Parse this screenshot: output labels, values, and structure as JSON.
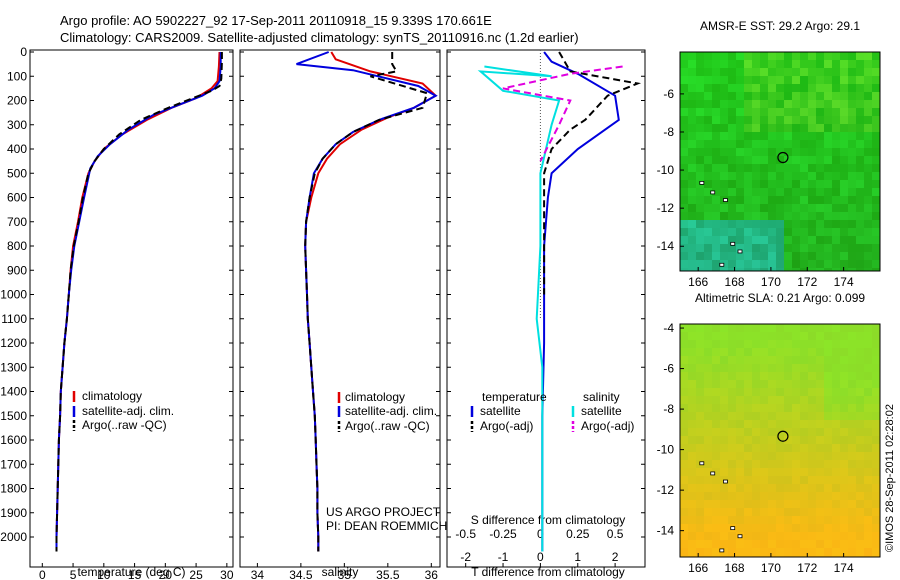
{
  "header": {
    "line1": "Argo profile: AO 5902227_92 17-Sep-2011 20110918_15 9.339S 170.661E",
    "line2": "Climatology: CARS2009. Satellite-adjusted climatology: synTS_20110916.nc (1.2d earlier)"
  },
  "credit": "©IMOS 28-Sep-2011 02:28:02",
  "project": {
    "line1": "US ARGO PROJECT",
    "line2": "PI: DEAN ROEMMICH"
  },
  "colors": {
    "climatology": "#e00000",
    "satellite": "#0000dd",
    "argo": "#000000",
    "salinity_sat": "#00e0e0",
    "salinity_argo": "#e000e0"
  },
  "chart_data": [
    {
      "id": "temperature",
      "type": "line",
      "xlabel": "temperature (deg C)",
      "ylabel": "",
      "xlim": [
        -2,
        31
      ],
      "ylim": [
        2060,
        0
      ],
      "xticks": [
        0,
        5,
        10,
        15,
        20,
        25,
        30
      ],
      "yticks": [
        0,
        100,
        200,
        300,
        400,
        500,
        600,
        700,
        800,
        900,
        1000,
        1100,
        1200,
        1300,
        1400,
        1500,
        1600,
        1700,
        1800,
        1900,
        2000
      ],
      "legend": {
        "placement": "bottom-center",
        "entries": [
          "climatology",
          "satellite-adj. clim.",
          "Argo(..raw -QC)"
        ]
      },
      "series": [
        {
          "name": "climatology",
          "color": "#e00000",
          "points": [
            [
              28.8,
              0
            ],
            [
              28.7,
              60
            ],
            [
              28.5,
              120
            ],
            [
              27.5,
              150
            ],
            [
              25,
              190
            ],
            [
              21,
              230
            ],
            [
              17,
              280
            ],
            [
              13,
              340
            ],
            [
              10,
              400
            ],
            [
              8.5,
              450
            ],
            [
              7.5,
              500
            ],
            [
              6.5,
              600
            ],
            [
              5.8,
              700
            ],
            [
              5.0,
              800
            ],
            [
              4.6,
              900
            ],
            [
              4.3,
              1000
            ],
            [
              4.0,
              1100
            ],
            [
              3.6,
              1200
            ],
            [
              3.3,
              1300
            ],
            [
              3.0,
              1400
            ],
            [
              2.9,
              1500
            ],
            [
              2.7,
              1600
            ],
            [
              2.6,
              1700
            ],
            [
              2.5,
              1800
            ],
            [
              2.4,
              1900
            ],
            [
              2.3,
              2000
            ],
            [
              2.3,
              2060
            ]
          ]
        },
        {
          "name": "satellite-adj. clim.",
          "color": "#0000dd",
          "points": [
            [
              29.0,
              0
            ],
            [
              29.0,
              60
            ],
            [
              28.8,
              120
            ],
            [
              28,
              150
            ],
            [
              26,
              180
            ],
            [
              22,
              220
            ],
            [
              18,
              260
            ],
            [
              14,
              320
            ],
            [
              11,
              380
            ],
            [
              9,
              430
            ],
            [
              7.8,
              480
            ],
            [
              6.8,
              600
            ],
            [
              6.0,
              700
            ],
            [
              5.2,
              800
            ],
            [
              4.7,
              900
            ],
            [
              4.3,
              1000
            ],
            [
              4.0,
              1100
            ],
            [
              3.6,
              1200
            ],
            [
              3.3,
              1300
            ],
            [
              3.0,
              1400
            ],
            [
              2.9,
              1500
            ],
            [
              2.7,
              1600
            ],
            [
              2.6,
              1700
            ],
            [
              2.5,
              1800
            ],
            [
              2.4,
              1900
            ],
            [
              2.3,
              2000
            ],
            [
              2.3,
              2060
            ]
          ]
        },
        {
          "name": "Argo(..raw -QC)",
          "color": "#000000",
          "dash": true,
          "points": [
            [
              29.2,
              0
            ],
            [
              29.2,
              40
            ],
            [
              29.1,
              110
            ],
            [
              28.8,
              140
            ],
            [
              27.5,
              160
            ],
            [
              24.5,
              190
            ],
            [
              20.5,
              230
            ],
            [
              16,
              280
            ],
            [
              12.5,
              340
            ],
            [
              10,
              400
            ],
            [
              8.5,
              450
            ],
            [
              7.5,
              500
            ],
            [
              6.6,
              600
            ],
            [
              5.9,
              700
            ],
            [
              5.1,
              800
            ],
            [
              4.6,
              900
            ],
            [
              4.3,
              1000
            ],
            [
              4.0,
              1100
            ],
            [
              3.6,
              1200
            ],
            [
              3.3,
              1300
            ],
            [
              3.0,
              1400
            ],
            [
              2.9,
              1500
            ],
            [
              2.7,
              1600
            ],
            [
              2.6,
              1700
            ],
            [
              2.5,
              1800
            ],
            [
              2.4,
              1900
            ],
            [
              2.3,
              2000
            ],
            [
              2.3,
              2060
            ]
          ]
        }
      ]
    },
    {
      "id": "salinity",
      "type": "line",
      "xlabel": "salinity",
      "ylabel": "",
      "xlim": [
        33.8,
        36.1
      ],
      "ylim": [
        2060,
        0
      ],
      "xticks": [
        34,
        34.5,
        35,
        35.5,
        36
      ],
      "legend": {
        "placement": "bottom-center",
        "entries": [
          "climatology",
          "satellite-adj. clim.",
          "Argo(..raw -QC)"
        ]
      },
      "series": [
        {
          "name": "climatology",
          "color": "#e00000",
          "points": [
            [
              34.85,
              0
            ],
            [
              34.9,
              30
            ],
            [
              35.3,
              80
            ],
            [
              35.9,
              130
            ],
            [
              36.05,
              180
            ],
            [
              35.8,
              230
            ],
            [
              35.5,
              270
            ],
            [
              35.2,
              320
            ],
            [
              34.95,
              380
            ],
            [
              34.8,
              440
            ],
            [
              34.7,
              500
            ],
            [
              34.62,
              600
            ],
            [
              34.56,
              700
            ],
            [
              34.55,
              800
            ],
            [
              34.56,
              900
            ],
            [
              34.57,
              1000
            ],
            [
              34.58,
              1100
            ],
            [
              34.6,
              1200
            ],
            [
              34.62,
              1300
            ],
            [
              34.64,
              1400
            ],
            [
              34.66,
              1500
            ],
            [
              34.67,
              1600
            ],
            [
              34.68,
              1700
            ],
            [
              34.69,
              1800
            ],
            [
              34.69,
              1900
            ],
            [
              34.7,
              2000
            ],
            [
              34.7,
              2060
            ]
          ]
        },
        {
          "name": "satellite-adj. clim.",
          "color": "#0000dd",
          "points": [
            [
              34.82,
              0
            ],
            [
              34.45,
              50
            ],
            [
              35.1,
              75
            ],
            [
              35.85,
              140
            ],
            [
              36.05,
              180
            ],
            [
              35.8,
              230
            ],
            [
              35.4,
              280
            ],
            [
              35.1,
              330
            ],
            [
              34.9,
              380
            ],
            [
              34.75,
              440
            ],
            [
              34.65,
              500
            ],
            [
              34.6,
              600
            ],
            [
              34.56,
              700
            ],
            [
              34.55,
              800
            ],
            [
              34.56,
              900
            ],
            [
              34.57,
              1000
            ],
            [
              34.58,
              1100
            ],
            [
              34.6,
              1200
            ],
            [
              34.62,
              1300
            ],
            [
              34.64,
              1400
            ],
            [
              34.66,
              1500
            ],
            [
              34.67,
              1600
            ],
            [
              34.68,
              1700
            ],
            [
              34.69,
              1800
            ],
            [
              34.69,
              1900
            ],
            [
              34.7,
              2000
            ],
            [
              34.7,
              2060
            ]
          ]
        },
        {
          "name": "Argo(..raw -QC)",
          "color": "#000000",
          "dash": true,
          "points": [
            [
              35.55,
              0
            ],
            [
              35.55,
              50
            ],
            [
              35.6,
              80
            ],
            [
              35.3,
              100
            ],
            [
              35.95,
              170
            ],
            [
              35.9,
              230
            ],
            [
              35.4,
              280
            ],
            [
              35.1,
              330
            ],
            [
              34.9,
              380
            ],
            [
              34.75,
              440
            ],
            [
              34.66,
              500
            ],
            [
              34.6,
              600
            ],
            [
              34.56,
              700
            ],
            [
              34.55,
              800
            ],
            [
              34.56,
              900
            ],
            [
              34.57,
              1000
            ],
            [
              34.58,
              1100
            ],
            [
              34.6,
              1200
            ],
            [
              34.62,
              1300
            ],
            [
              34.64,
              1400
            ],
            [
              34.66,
              1500
            ],
            [
              34.67,
              1600
            ],
            [
              34.68,
              1700
            ],
            [
              34.69,
              1800
            ],
            [
              34.69,
              1900
            ],
            [
              34.7,
              2000
            ],
            [
              34.7,
              2060
            ]
          ]
        }
      ]
    },
    {
      "id": "difference",
      "type": "line",
      "xlabel": "T difference from climatology",
      "xlabel2": "S difference from climatology",
      "xlim": [
        -2.5,
        2.8
      ],
      "xlim2": [
        -0.625,
        0.7
      ],
      "ylim": [
        2060,
        0
      ],
      "xticks": [
        -2,
        -1,
        0,
        1,
        2
      ],
      "xticks2": [
        -0.5,
        -0.25,
        0,
        0.25,
        0.5
      ],
      "xticks2_labels": [
        "-0.5",
        "-0.25",
        "0",
        "0.25",
        "0.5"
      ],
      "legend": {
        "placement": "bottom-center",
        "headings": [
          "temperature",
          "salinity"
        ],
        "entries": [
          "satellite",
          "Argo(-adj)",
          "satellite",
          "Argo(-adj)"
        ]
      },
      "series": [
        {
          "name": "satellite",
          "group": "temperature",
          "color": "#0000dd",
          "points": [
            [
              0.1,
              0
            ],
            [
              0.3,
              40
            ],
            [
              1.0,
              90
            ],
            [
              2.0,
              180
            ],
            [
              2.1,
              280
            ],
            [
              1.0,
              400
            ],
            [
              0.3,
              500
            ],
            [
              0.2,
              600
            ],
            [
              0.1,
              800
            ],
            [
              0.1,
              1000
            ],
            [
              0.1,
              1200
            ],
            [
              0.05,
              1500
            ],
            [
              0.05,
              2060
            ]
          ]
        },
        {
          "name": "Argo(-adj)",
          "group": "temperature",
          "color": "#000000",
          "dash": true,
          "points": [
            [
              0.5,
              0
            ],
            [
              0.8,
              80
            ],
            [
              2.6,
              130
            ],
            [
              1.8,
              180
            ],
            [
              1.2,
              280
            ],
            [
              0.8,
              320
            ],
            [
              0.3,
              400
            ],
            [
              0.1,
              500
            ],
            [
              0.1,
              700
            ],
            [
              0.1,
              1000
            ]
          ]
        },
        {
          "name": "satellite",
          "group": "salinity",
          "color": "#00e0e0",
          "points": [
            [
              -1.5,
              60
            ],
            [
              0.3,
              100
            ],
            [
              -1.6,
              80
            ],
            [
              -1.0,
              160
            ],
            [
              0.5,
              200
            ],
            [
              0.3,
              300
            ],
            [
              0.0,
              500
            ],
            [
              0.0,
              800
            ],
            [
              -0.1,
              1100
            ],
            [
              0.05,
              1300
            ],
            [
              0.05,
              2060
            ]
          ]
        },
        {
          "name": "Argo(-adj)",
          "group": "salinity",
          "color": "#e000e0",
          "dash": true,
          "points": [
            [
              2.2,
              60
            ],
            [
              0.8,
              90
            ],
            [
              -1.0,
              150
            ],
            [
              0.8,
              200
            ],
            [
              0.5,
              300
            ],
            [
              0.0,
              450
            ]
          ]
        }
      ]
    },
    {
      "id": "sst_map",
      "type": "heatmap",
      "title": "AMSR-E SST: 29.2 Argo: 29.1",
      "xlim": [
        165,
        176
      ],
      "ylim": [
        -15.3,
        -3.8
      ],
      "xticks": [
        166,
        168,
        170,
        172,
        174
      ],
      "yticks": [
        -6,
        -8,
        -10,
        -12,
        -14
      ],
      "marker": {
        "lon": 170.661,
        "lat": -9.339
      }
    },
    {
      "id": "sla_map",
      "type": "heatmap",
      "title": "Altimetric SLA: 0.21 Argo: 0.099",
      "xlim": [
        165,
        176
      ],
      "ylim": [
        -15.3,
        -3.8
      ],
      "xticks": [
        166,
        168,
        170,
        172,
        174
      ],
      "yticks": [
        -4,
        -6,
        -8,
        -10,
        -12,
        -14
      ],
      "marker": {
        "lon": 170.661,
        "lat": -9.339
      }
    }
  ]
}
